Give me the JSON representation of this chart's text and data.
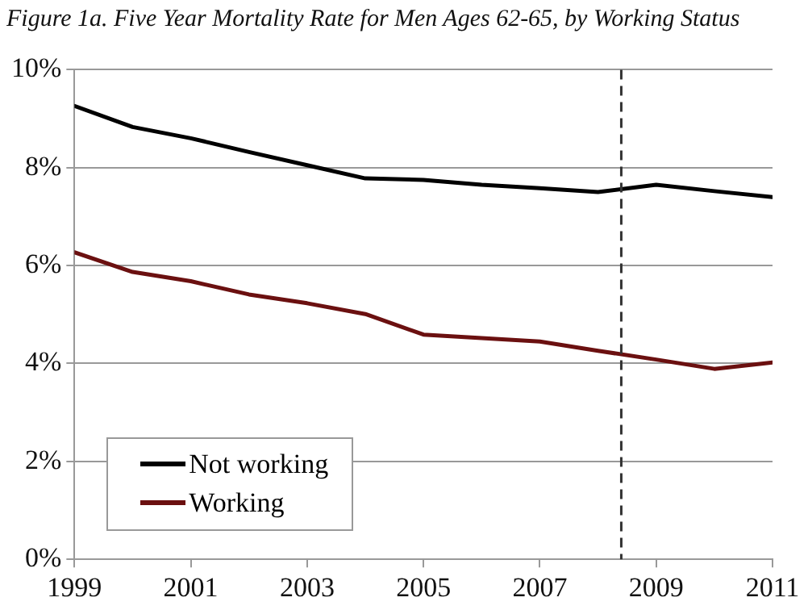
{
  "chart_data": {
    "type": "line",
    "title": "Figure 1a. Five Year Mortality Rate for Men Ages 62-65, by Working Status",
    "x": [
      1999,
      2000,
      2001,
      2002,
      2003,
      2004,
      2005,
      2006,
      2007,
      2008,
      2009,
      2010,
      2011
    ],
    "series": [
      {
        "name": "Not working",
        "color": "#000000",
        "values": [
          9.26,
          8.83,
          8.6,
          8.32,
          8.05,
          7.78,
          7.75,
          7.65,
          7.58,
          7.5,
          7.65,
          7.52,
          7.4
        ]
      },
      {
        "name": "Working",
        "color": "#6b1010",
        "values": [
          6.27,
          5.87,
          5.68,
          5.41,
          5.23,
          5.01,
          4.59,
          4.52,
          4.45,
          4.26,
          4.08,
          3.89,
          4.02
        ]
      }
    ],
    "xlim": [
      1999,
      2011
    ],
    "xticks": [
      1999,
      2001,
      2003,
      2005,
      2007,
      2009,
      2011
    ],
    "ylim": [
      0,
      10
    ],
    "yticks": [
      {
        "value": 0,
        "label": "0%"
      },
      {
        "value": 2,
        "label": "2%"
      },
      {
        "value": 4,
        "label": "4%"
      },
      {
        "value": 6,
        "label": "6%"
      },
      {
        "value": 8,
        "label": "8%"
      },
      {
        "value": 10,
        "label": "10%"
      }
    ],
    "ref_lines": [
      {
        "axis": "x",
        "value": 2008.4,
        "color": "#333333",
        "line_style": "dashed"
      }
    ],
    "grid": "y",
    "legend": "bottom left",
    "marker": "none",
    "line_style": "solid"
  }
}
